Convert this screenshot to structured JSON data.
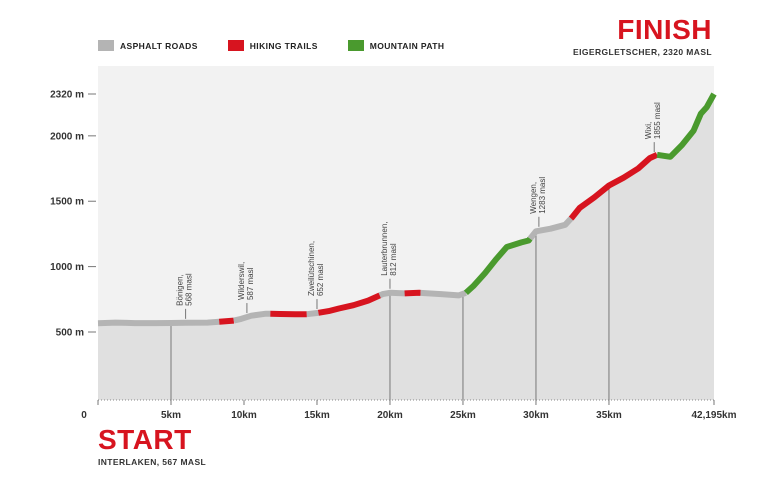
{
  "legend": [
    {
      "label": "ASPHALT ROADS",
      "color": "#b4b4b4"
    },
    {
      "label": "HIKING TRAILS",
      "color": "#d7141f"
    },
    {
      "label": "MOUNTAIN PATH",
      "color": "#4a9a2e"
    }
  ],
  "finish": {
    "title": "FINISH",
    "subtitle": "EIGERGLETSCHER, 2320 MASL"
  },
  "start": {
    "title": "START",
    "subtitle": "INTERLAKEN, 567 MASL"
  },
  "chart_data": {
    "type": "area",
    "xlim": [
      0,
      42.195
    ],
    "ylim": [
      0,
      2320
    ],
    "x_ticks": [
      {
        "value": 0,
        "label": "0"
      },
      {
        "value": 5,
        "label": "5km"
      },
      {
        "value": 10,
        "label": "10km"
      },
      {
        "value": 15,
        "label": "15km"
      },
      {
        "value": 20,
        "label": "20km"
      },
      {
        "value": 25,
        "label": "25km"
      },
      {
        "value": 30,
        "label": "30km"
      },
      {
        "value": 35,
        "label": "35km"
      },
      {
        "value": 42.195,
        "label": "42,195km"
      }
    ],
    "y_ticks": [
      {
        "value": 500,
        "label": "500 m"
      },
      {
        "value": 1000,
        "label": "1000 m"
      },
      {
        "value": 1500,
        "label": "1500 m"
      },
      {
        "value": 2000,
        "label": "2000 m"
      },
      {
        "value": 2320,
        "label": "2320 m"
      }
    ],
    "profile": [
      [
        0,
        567
      ],
      [
        1.2,
        572
      ],
      [
        2.5,
        568
      ],
      [
        4,
        568
      ],
      [
        5,
        569
      ],
      [
        6,
        570
      ],
      [
        7.5,
        572
      ],
      [
        8.3,
        578
      ],
      [
        9.3,
        587
      ],
      [
        9.8,
        600
      ],
      [
        10.5,
        625
      ],
      [
        11.5,
        640
      ],
      [
        12.5,
        638
      ],
      [
        13.5,
        636
      ],
      [
        14.3,
        636
      ],
      [
        15,
        645
      ],
      [
        15.8,
        660
      ],
      [
        16.5,
        680
      ],
      [
        17.5,
        705
      ],
      [
        18.5,
        740
      ],
      [
        19.5,
        790
      ],
      [
        20,
        800
      ],
      [
        21,
        795
      ],
      [
        22,
        800
      ],
      [
        23.5,
        790
      ],
      [
        24.7,
        780
      ],
      [
        25.2,
        800
      ],
      [
        25.7,
        850
      ],
      [
        26.5,
        950
      ],
      [
        27.3,
        1060
      ],
      [
        28,
        1150
      ],
      [
        29,
        1185
      ],
      [
        29.5,
        1200
      ],
      [
        30,
        1270
      ],
      [
        31,
        1290
      ],
      [
        32,
        1320
      ],
      [
        32.5,
        1380
      ],
      [
        33,
        1450
      ],
      [
        34,
        1530
      ],
      [
        35,
        1620
      ],
      [
        36,
        1680
      ],
      [
        37,
        1750
      ],
      [
        37.8,
        1830
      ],
      [
        38.3,
        1855
      ],
      [
        39.2,
        1840
      ],
      [
        40,
        1930
      ],
      [
        40.8,
        2040
      ],
      [
        41.3,
        2170
      ],
      [
        41.7,
        2220
      ],
      [
        42.195,
        2320
      ]
    ],
    "segments": [
      {
        "type": "asphalt",
        "from": 0,
        "to": 8.3
      },
      {
        "type": "hiking",
        "from": 8.3,
        "to": 9.3
      },
      {
        "type": "asphalt",
        "from": 9.3,
        "to": 11.8
      },
      {
        "type": "hiking",
        "from": 11.8,
        "to": 14.3
      },
      {
        "type": "asphalt",
        "from": 14.3,
        "to": 15.1
      },
      {
        "type": "hiking",
        "from": 15.1,
        "to": 19.3
      },
      {
        "type": "asphalt",
        "from": 19.3,
        "to": 21
      },
      {
        "type": "hiking",
        "from": 21,
        "to": 22.1
      },
      {
        "type": "asphalt",
        "from": 22.1,
        "to": 25.2
      },
      {
        "type": "mountain",
        "from": 25.2,
        "to": 29.6
      },
      {
        "type": "asphalt",
        "from": 29.6,
        "to": 32.4
      },
      {
        "type": "hiking",
        "from": 32.4,
        "to": 38.3
      },
      {
        "type": "mountain",
        "from": 38.3,
        "to": 42.195
      }
    ],
    "annotations": [
      {
        "km": 6,
        "altitude": 568,
        "label": "Bönigen,",
        "label2": "568 masl"
      },
      {
        "km": 10.2,
        "altitude": 587,
        "label": "Wilderswil,",
        "label2": "587 masl"
      },
      {
        "km": 15,
        "altitude": 652,
        "label": "Zweilütschinen,",
        "label2": "652 masl"
      },
      {
        "km": 20,
        "altitude": 812,
        "label": "Lauterbrunnen,",
        "label2": "812 masl"
      },
      {
        "km": 30.2,
        "altitude": 1283,
        "label": "Wengen,",
        "label2": "1283 masl"
      },
      {
        "km": 38.1,
        "altitude": 1855,
        "label": "Wixi,",
        "label2": "1855 masl"
      }
    ],
    "verticals": [
      5,
      20,
      25,
      30,
      35
    ],
    "colors": {
      "asphalt": "#b4b4b4",
      "hiking": "#d7141f",
      "mountain": "#4a9a2e",
      "fill": "#e0e0e0",
      "plot_bg": "#f2f2f2"
    }
  }
}
